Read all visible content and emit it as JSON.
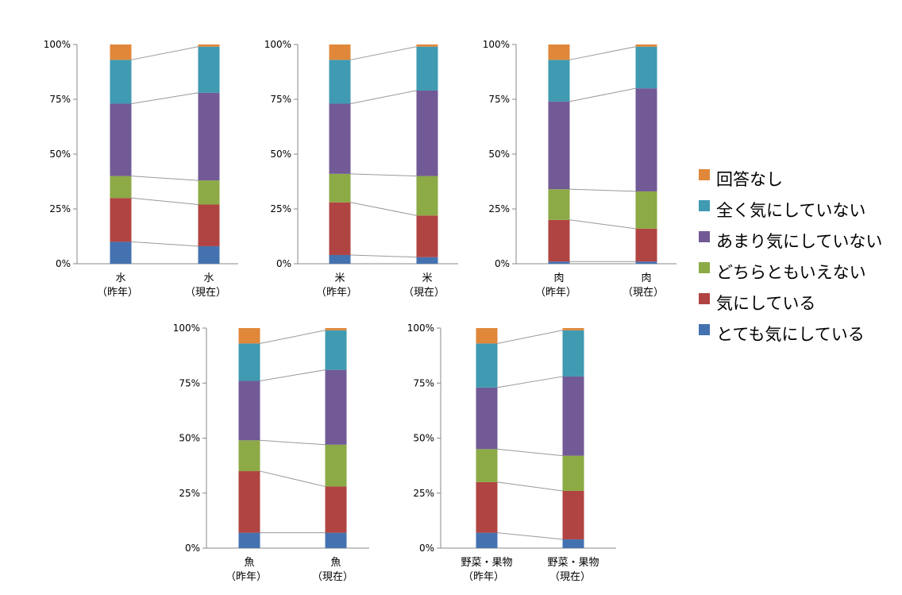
{
  "colors": {
    "回答なし": "#E0873A",
    "全く気にしていない": "#3F9AB2",
    "あまり気にしていない": "#725A96",
    "どちらともいえない": "#8CAA45",
    "気にしている": "#B04442",
    "とても気にしている": "#4472B0"
  },
  "legend": [
    "回答なし",
    "全く気にしていない",
    "あまり気にしていない",
    "どちらともいえない",
    "気にしている",
    "とても気にしている"
  ],
  "chart_data": [
    {
      "type": "bar",
      "stacked": true,
      "ylim": [
        0,
        100
      ],
      "yticks": [
        "0%",
        "25%",
        "50%",
        "75%",
        "100%"
      ],
      "categories": [
        [
          "水",
          "（昨年）"
        ],
        [
          "水",
          "（現在）"
        ]
      ],
      "series": [
        {
          "name": "とても気にしている",
          "values": [
            10,
            8
          ]
        },
        {
          "name": "気にしている",
          "values": [
            20,
            19
          ]
        },
        {
          "name": "どちらともいえない",
          "values": [
            10,
            11
          ]
        },
        {
          "name": "あまり気にしていない",
          "values": [
            33,
            40
          ]
        },
        {
          "name": "全く気にしていない",
          "values": [
            20,
            21
          ]
        },
        {
          "name": "回答なし",
          "values": [
            7,
            1
          ]
        }
      ]
    },
    {
      "type": "bar",
      "stacked": true,
      "ylim": [
        0,
        100
      ],
      "yticks": [
        "0%",
        "25%",
        "50%",
        "75%",
        "100%"
      ],
      "categories": [
        [
          "米",
          "（昨年）"
        ],
        [
          "米",
          "（現在）"
        ]
      ],
      "series": [
        {
          "name": "とても気にしている",
          "values": [
            4,
            3
          ]
        },
        {
          "name": "気にしている",
          "values": [
            24,
            19
          ]
        },
        {
          "name": "どちらともいえない",
          "values": [
            13,
            18
          ]
        },
        {
          "name": "あまり気にしていない",
          "values": [
            32,
            39
          ]
        },
        {
          "name": "全く気にしていない",
          "values": [
            20,
            20
          ]
        },
        {
          "name": "回答なし",
          "values": [
            7,
            1
          ]
        }
      ]
    },
    {
      "type": "bar",
      "stacked": true,
      "ylim": [
        0,
        100
      ],
      "yticks": [
        "0%",
        "25%",
        "50%",
        "75%",
        "100%"
      ],
      "categories": [
        [
          "肉",
          "（昨年）"
        ],
        [
          "肉",
          "（現在）"
        ]
      ],
      "series": [
        {
          "name": "とても気にしている",
          "values": [
            1,
            1
          ]
        },
        {
          "name": "気にしている",
          "values": [
            19,
            15
          ]
        },
        {
          "name": "どちらともいえない",
          "values": [
            14,
            17
          ]
        },
        {
          "name": "あまり気にしていない",
          "values": [
            40,
            47
          ]
        },
        {
          "name": "全く気にしていない",
          "values": [
            19,
            19
          ]
        },
        {
          "name": "回答なし",
          "values": [
            7,
            1
          ]
        }
      ]
    },
    {
      "type": "bar",
      "stacked": true,
      "ylim": [
        0,
        100
      ],
      "yticks": [
        "0%",
        "25%",
        "50%",
        "75%",
        "100%"
      ],
      "categories": [
        [
          "魚",
          "（昨年）"
        ],
        [
          "魚",
          "（現在）"
        ]
      ],
      "series": [
        {
          "name": "とても気にしている",
          "values": [
            7,
            7
          ]
        },
        {
          "name": "気にしている",
          "values": [
            28,
            21
          ]
        },
        {
          "name": "どちらともいえない",
          "values": [
            14,
            19
          ]
        },
        {
          "name": "あまり気にしていない",
          "values": [
            27,
            34
          ]
        },
        {
          "name": "全く気にしていない",
          "values": [
            17,
            18
          ]
        },
        {
          "name": "回答なし",
          "values": [
            7,
            1
          ]
        }
      ]
    },
    {
      "type": "bar",
      "stacked": true,
      "ylim": [
        0,
        100
      ],
      "yticks": [
        "0%",
        "25%",
        "50%",
        "75%",
        "100%"
      ],
      "categories": [
        [
          "野菜・果物",
          "（昨年）"
        ],
        [
          "野菜・果物",
          "（現在）"
        ]
      ],
      "series": [
        {
          "name": "とても気にしている",
          "values": [
            7,
            4
          ]
        },
        {
          "name": "気にしている",
          "values": [
            23,
            22
          ]
        },
        {
          "name": "どちらともいえない",
          "values": [
            15,
            16
          ]
        },
        {
          "name": "あまり気にしていない",
          "values": [
            28,
            36
          ]
        },
        {
          "name": "全く気にしていない",
          "values": [
            20,
            21
          ]
        },
        {
          "name": "回答なし",
          "values": [
            7,
            1
          ]
        }
      ]
    }
  ]
}
